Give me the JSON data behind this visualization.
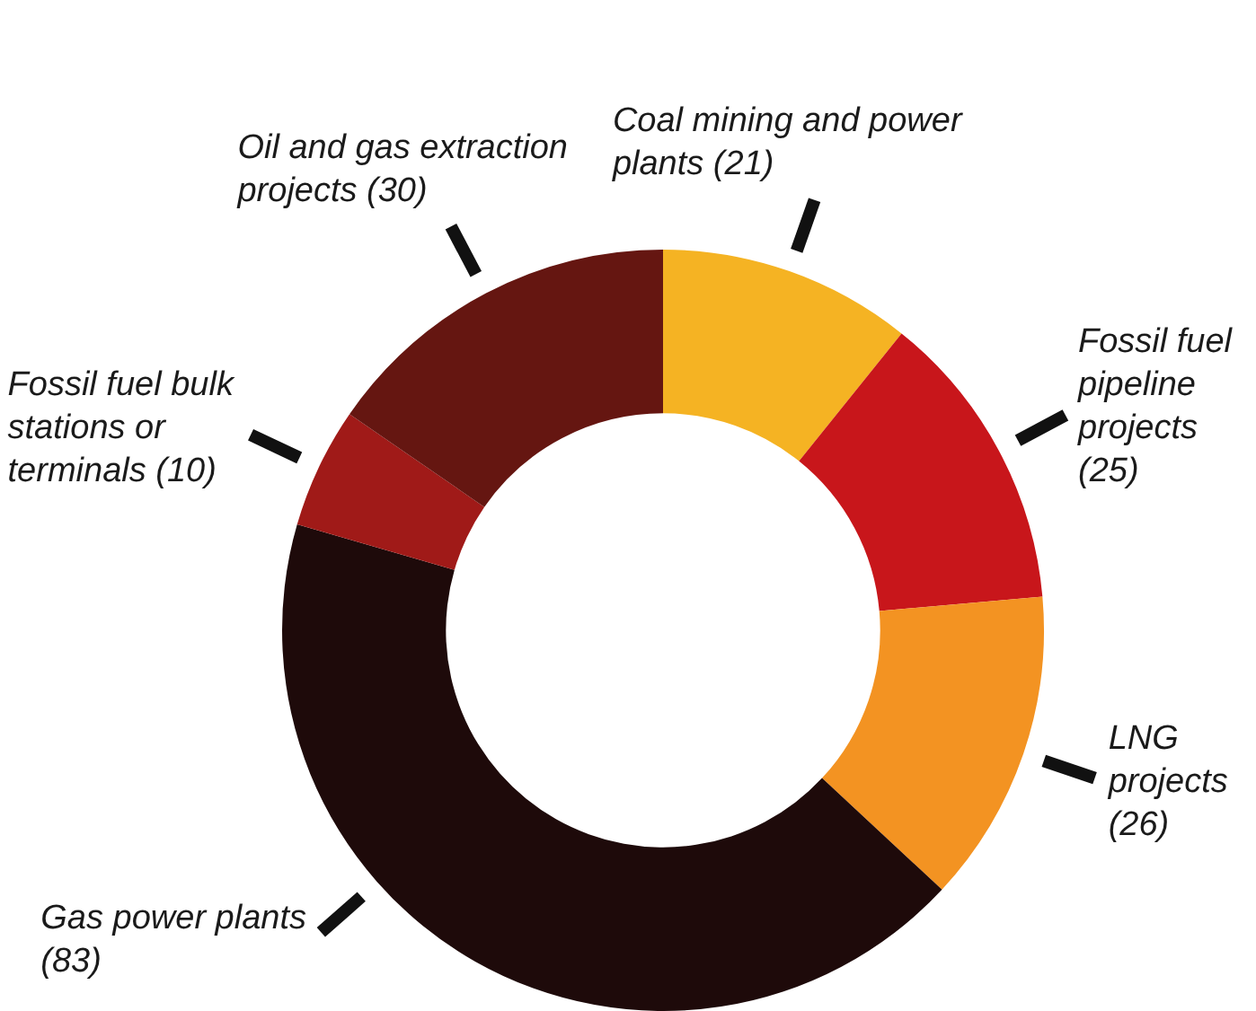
{
  "chart_data": {
    "type": "donut",
    "categories": [
      "Coal mining and power plants",
      "Fossil fuel pipeline projects",
      "LNG projects",
      "Gas power plants",
      "Fossil fuel bulk stations or terminals",
      "Oil and gas extraction projects"
    ],
    "values": [
      21,
      25,
      26,
      83,
      10,
      30
    ],
    "colors": [
      "#f5b323",
      "#c8161b",
      "#f39322",
      "#1e0a0a",
      "#a01a18",
      "#651611"
    ],
    "value_labels": [
      "(21)",
      "(25)",
      "(26)",
      "(83)",
      "(10)",
      "(30)"
    ],
    "legend": false
  }
}
